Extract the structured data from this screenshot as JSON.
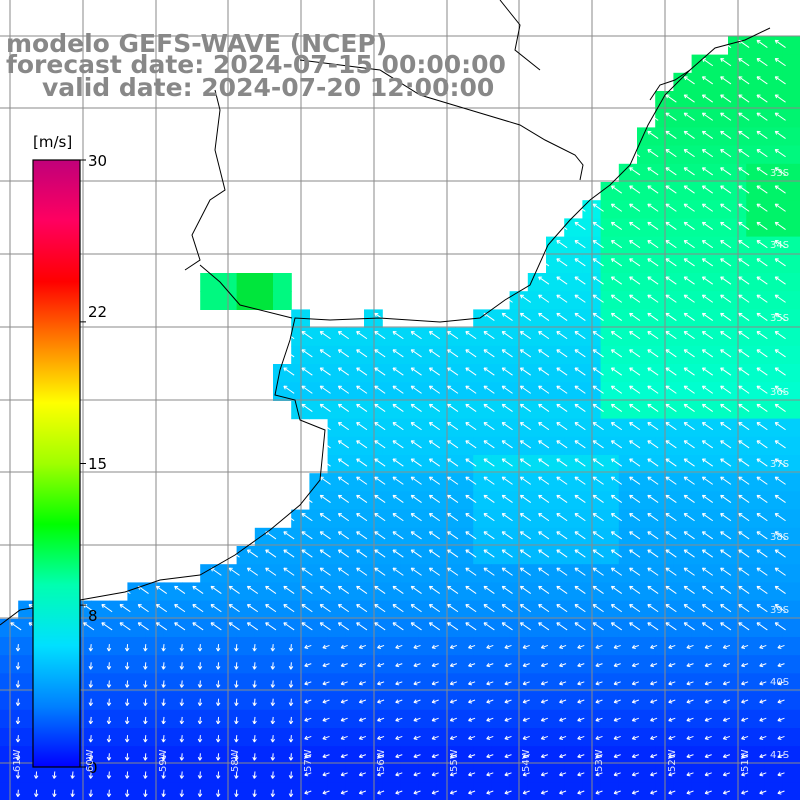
{
  "title_lines": {
    "model": "modelo GEFS-WAVE (NCEP)",
    "forecast": "forecast date: 2024-07-15 00:00:00",
    "valid": "valid date: 2024-07-20 12:00:00"
  },
  "colorbar": {
    "unit_label": "[m/s]",
    "ticks": [
      {
        "value": 30,
        "label": "30"
      },
      {
        "value": 22,
        "label": "22"
      },
      {
        "value": 15,
        "label": "15"
      },
      {
        "value": 8,
        "label": "8"
      },
      {
        "value": 0,
        "label": "0"
      }
    ],
    "range": [
      0,
      30
    ],
    "colors": [
      "#0000ff",
      "#0080ff",
      "#00e0ff",
      "#00ffb0",
      "#00ff00",
      "#a0ff00",
      "#ffff00",
      "#ff8000",
      "#ff0000",
      "#ff0060",
      "#c0007a"
    ]
  },
  "map": {
    "lat_labels": [
      "33S",
      "34S",
      "35S",
      "36S",
      "37S",
      "38S",
      "39S",
      "40S",
      "41S"
    ],
    "lon_labels": [
      "61W",
      "60W",
      "59W",
      "58W",
      "57W",
      "56W",
      "55W",
      "54W",
      "53W",
      "52W",
      "51W"
    ],
    "land_color": "#ffffff",
    "grid_color": "#888888",
    "coast_color": "#000000",
    "arrow_color": "#ffffff"
  }
}
